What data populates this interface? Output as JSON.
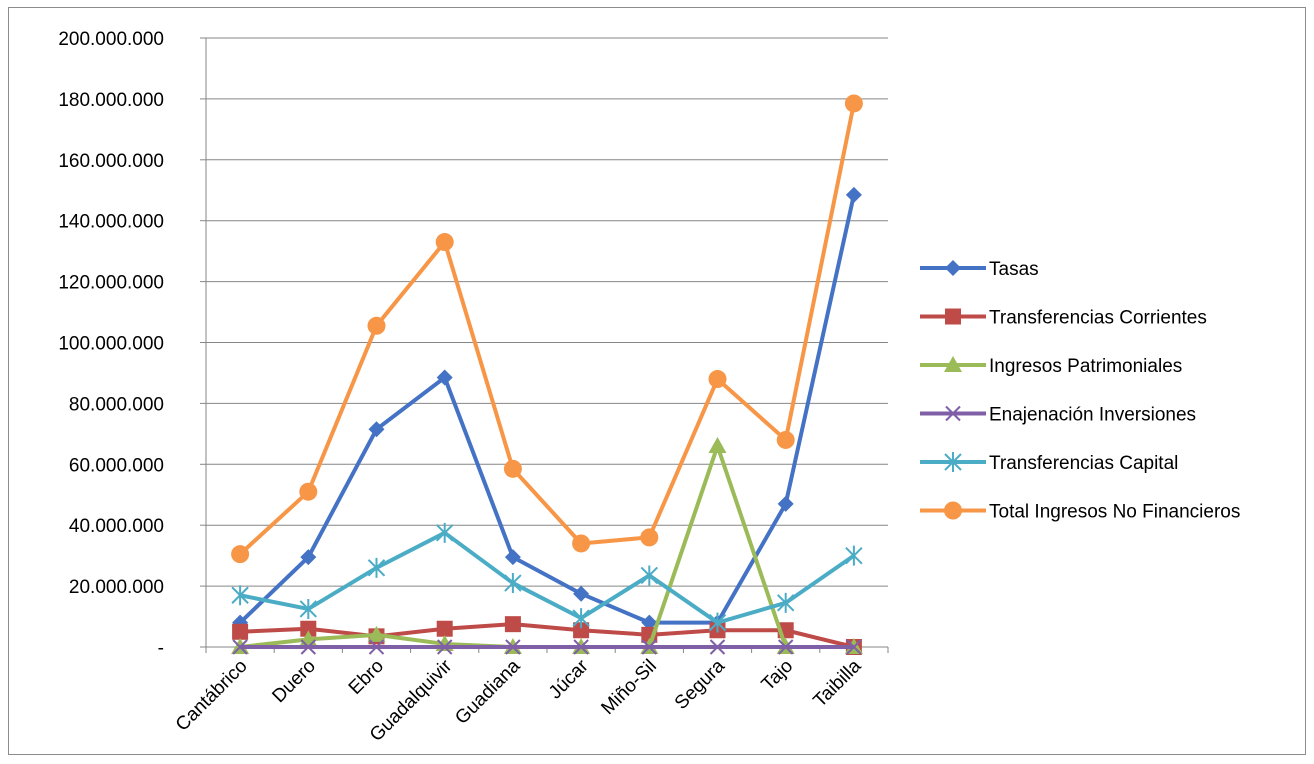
{
  "chart_data": {
    "type": "line",
    "categories": [
      "Cantábrico",
      "Duero",
      "Ebro",
      "Guadalquivir",
      "Guadiana",
      "Júcar",
      "Miño-Sil",
      "Segura",
      "Tajo",
      "Taibilla"
    ],
    "ylim": [
      0,
      200000000
    ],
    "yticks": [
      0,
      20000000,
      40000000,
      60000000,
      80000000,
      100000000,
      120000000,
      140000000,
      160000000,
      180000000,
      200000000
    ],
    "ytick_labels": [
      "-",
      "20.000.000",
      "40.000.000",
      "60.000.000",
      "80.000.000",
      "100.000.000",
      "120.000.000",
      "140.000.000",
      "160.000.000",
      "180.000.000",
      "200.000.000"
    ],
    "grid": true,
    "legend_position": "right",
    "series": [
      {
        "name": "Tasas",
        "color": "#4472c4",
        "marker": "diamond",
        "values": [
          8000000,
          29500000,
          71500000,
          88500000,
          29500000,
          17500000,
          8000000,
          8000000,
          47000000,
          148500000
        ]
      },
      {
        "name": "Transferencias Corrientes",
        "color": "#be4b48",
        "marker": "square",
        "values": [
          5000000,
          6000000,
          3500000,
          6000000,
          7500000,
          5500000,
          4000000,
          5500000,
          5500000,
          0
        ]
      },
      {
        "name": "Ingresos Patrimoniales",
        "color": "#9bbb59",
        "marker": "triangle",
        "values": [
          0,
          2500000,
          4000000,
          1000000,
          0,
          0,
          0,
          66000000,
          0,
          0
        ]
      },
      {
        "name": "Enajenación Inversiones",
        "color": "#7f5fa6",
        "marker": "x",
        "values": [
          0,
          0,
          0,
          0,
          0,
          0,
          0,
          0,
          0,
          0
        ]
      },
      {
        "name": "Transferencias Capital",
        "color": "#4bacc6",
        "marker": "star",
        "values": [
          17000000,
          12500000,
          26000000,
          37500000,
          21000000,
          9500000,
          23500000,
          8000000,
          14500000,
          30000000
        ]
      },
      {
        "name": "Total Ingresos No Financieros",
        "color": "#f79646",
        "marker": "circle",
        "values": [
          30500000,
          51000000,
          105500000,
          133000000,
          58500000,
          34000000,
          36000000,
          88000000,
          68000000,
          178500000
        ]
      }
    ]
  }
}
